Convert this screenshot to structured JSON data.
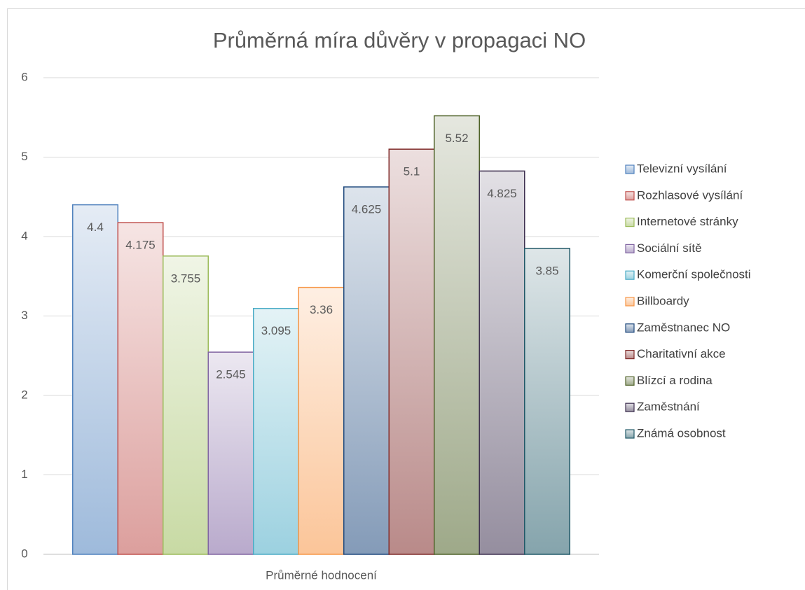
{
  "chart_data": {
    "type": "bar",
    "title": "Průměrná míra důvěry v propagaci NO",
    "categories": [
      "Průměrné hodnocení"
    ],
    "series": [
      {
        "name": "Televizní vysílání",
        "color": "#4f81bd",
        "values": [
          4.4
        ]
      },
      {
        "name": "Rozhlasové vysílání",
        "color": "#c0504d",
        "values": [
          4.175
        ]
      },
      {
        "name": "Internetové stránky",
        "color": "#9bbb59",
        "values": [
          3.755
        ]
      },
      {
        "name": "Sociální sítě",
        "color": "#8064a2",
        "values": [
          2.545
        ]
      },
      {
        "name": "Komerční společnosti",
        "color": "#4bacc6",
        "values": [
          3.095
        ]
      },
      {
        "name": "Billboardy",
        "color": "#f79646",
        "values": [
          3.36
        ]
      },
      {
        "name": "Zaměstnanec NO",
        "color": "#1f497d",
        "values": [
          4.625
        ]
      },
      {
        "name": "Charitativní akce",
        "color": "#7f2a28",
        "values": [
          5.1
        ]
      },
      {
        "name": "Blízcí a rodina",
        "color": "#4f6228",
        "values": [
          5.52
        ]
      },
      {
        "name": "Zaměstnání",
        "color": "#3f3151",
        "values": [
          4.825
        ]
      },
      {
        "name": "Známá osobnost",
        "color": "#215968",
        "values": [
          3.85
        ]
      }
    ],
    "ylim": [
      0,
      6
    ],
    "yticks": [
      0,
      1,
      2,
      3,
      4,
      5,
      6
    ],
    "grid": true,
    "legend": "right"
  }
}
